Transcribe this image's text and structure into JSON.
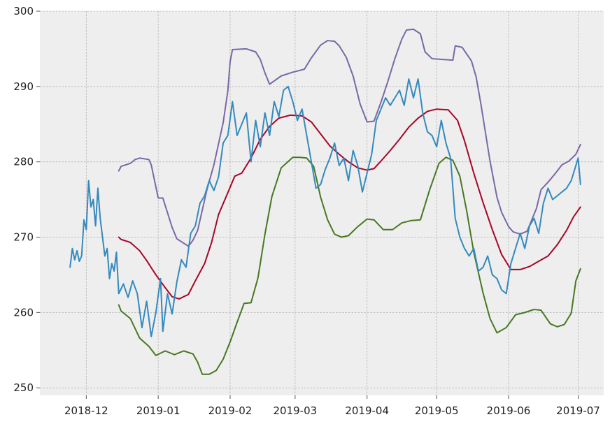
{
  "chart_data": {
    "type": "line",
    "title": "",
    "xlabel": "",
    "ylabel": "",
    "grid": true,
    "xlim": [
      "2018-11-11",
      "2019-07-12"
    ],
    "ylim": [
      249,
      300
    ],
    "x_ticks": [
      {
        "date": "2018-12-01",
        "label": "2018-12"
      },
      {
        "date": "2019-01-01",
        "label": "2019-01"
      },
      {
        "date": "2019-02-01",
        "label": "2019-02"
      },
      {
        "date": "2019-03-01",
        "label": "2019-03"
      },
      {
        "date": "2019-04-01",
        "label": "2019-04"
      },
      {
        "date": "2019-05-01",
        "label": "2019-05"
      },
      {
        "date": "2019-06-01",
        "label": "2019-06"
      },
      {
        "date": "2019-07-01",
        "label": "2019-07"
      }
    ],
    "y_ticks": [
      250,
      260,
      270,
      280,
      290,
      300
    ],
    "series": [
      {
        "color": "#7a68a6",
        "x": [
          "2018-12-15",
          "2018-12-16",
          "2018-12-20",
          "2018-12-22",
          "2018-12-24",
          "2018-12-28",
          "2018-12-29",
          "2019-01-01",
          "2019-01-03",
          "2019-01-07",
          "2019-01-09",
          "2019-01-12",
          "2019-01-14",
          "2019-01-16",
          "2019-01-18",
          "2019-01-22",
          "2019-01-25",
          "2019-01-27",
          "2019-01-29",
          "2019-01-31",
          "2019-02-01",
          "2019-02-02",
          "2019-02-08",
          "2019-02-12",
          "2019-02-14",
          "2019-02-16",
          "2019-02-18",
          "2019-02-23",
          "2019-02-28",
          "2019-03-05",
          "2019-03-08",
          "2019-03-12",
          "2019-03-15",
          "2019-03-18",
          "2019-03-20",
          "2019-03-23",
          "2019-03-26",
          "2019-03-29",
          "2019-04-01",
          "2019-04-04",
          "2019-04-07",
          "2019-04-10",
          "2019-04-13",
          "2019-04-16",
          "2019-04-18",
          "2019-04-21",
          "2019-04-24",
          "2019-04-26",
          "2019-04-29",
          "2019-05-03",
          "2019-05-08",
          "2019-05-09",
          "2019-05-12",
          "2019-05-16",
          "2019-05-18",
          "2019-05-20",
          "2019-05-24",
          "2019-05-27",
          "2019-05-29",
          "2019-06-01",
          "2019-06-03",
          "2019-06-06",
          "2019-06-09",
          "2019-06-13",
          "2019-06-15",
          "2019-06-18",
          "2019-06-21",
          "2019-06-24",
          "2019-06-27",
          "2019-06-30",
          "2019-07-02"
        ],
        "y": [
          278.8,
          279.4,
          279.8,
          280.3,
          280.5,
          280.3,
          279.6,
          275.2,
          275.2,
          271.3,
          269.8,
          269.2,
          268.8,
          269.6,
          270.9,
          276.3,
          279.6,
          282.4,
          285.2,
          289.4,
          293.3,
          294.9,
          295.0,
          294.6,
          293.6,
          291.8,
          290.3,
          291.4,
          291.9,
          292.3,
          293.8,
          295.5,
          296.1,
          296.0,
          295.4,
          293.9,
          291.4,
          287.7,
          285.3,
          285.4,
          287.9,
          290.7,
          293.7,
          296.3,
          297.5,
          297.6,
          297.0,
          294.6,
          293.7,
          293.6,
          293.5,
          295.4,
          295.2,
          293.4,
          291.3,
          287.8,
          280.1,
          275.3,
          273.3,
          271.4,
          270.7,
          270.4,
          270.8,
          273.8,
          276.3,
          277.3,
          278.4,
          279.6,
          280.1,
          281.0,
          282.3
        ]
      },
      {
        "color": "#a60628",
        "x": [
          "2018-12-15",
          "2018-12-16",
          "2018-12-20",
          "2018-12-24",
          "2018-12-27",
          "2018-12-31",
          "2019-01-04",
          "2019-01-07",
          "2019-01-10",
          "2019-01-14",
          "2019-01-17",
          "2019-01-21",
          "2019-01-24",
          "2019-01-27",
          "2019-01-31",
          "2019-02-03",
          "2019-02-06",
          "2019-02-10",
          "2019-02-14",
          "2019-02-18",
          "2019-02-22",
          "2019-02-27",
          "2019-03-04",
          "2019-03-08",
          "2019-03-12",
          "2019-03-16",
          "2019-03-20",
          "2019-03-24",
          "2019-03-28",
          "2019-04-01",
          "2019-04-04",
          "2019-04-07",
          "2019-04-11",
          "2019-04-15",
          "2019-04-19",
          "2019-04-23",
          "2019-04-27",
          "2019-05-01",
          "2019-05-06",
          "2019-05-10",
          "2019-05-13",
          "2019-05-17",
          "2019-05-21",
          "2019-05-25",
          "2019-05-29",
          "2019-06-02",
          "2019-06-06",
          "2019-06-10",
          "2019-06-14",
          "2019-06-18",
          "2019-06-22",
          "2019-06-26",
          "2019-06-29",
          "2019-07-02"
        ],
        "y": [
          270.0,
          269.7,
          269.3,
          268.2,
          266.9,
          265.0,
          263.3,
          262.1,
          261.8,
          262.4,
          264.2,
          266.5,
          269.3,
          273.0,
          275.9,
          278.1,
          278.5,
          280.5,
          283.0,
          284.7,
          285.8,
          286.2,
          286.1,
          285.3,
          283.7,
          282.1,
          281.0,
          280.0,
          279.2,
          278.9,
          279.1,
          280.1,
          281.5,
          283.0,
          284.6,
          285.8,
          286.7,
          287.0,
          286.9,
          285.5,
          282.8,
          278.5,
          274.6,
          271.0,
          267.7,
          265.7,
          265.7,
          266.1,
          266.8,
          267.5,
          269.0,
          270.9,
          272.7,
          274.0
        ]
      },
      {
        "color": "#467821",
        "x": [
          "2018-12-15",
          "2018-12-16",
          "2018-12-20",
          "2018-12-24",
          "2018-12-28",
          "2018-12-31",
          "2019-01-04",
          "2019-01-08",
          "2019-01-12",
          "2019-01-16",
          "2019-01-18",
          "2019-01-20",
          "2019-01-23",
          "2019-01-26",
          "2019-01-29",
          "2019-02-01",
          "2019-02-04",
          "2019-02-07",
          "2019-02-10",
          "2019-02-13",
          "2019-02-16",
          "2019-02-19",
          "2019-02-23",
          "2019-02-28",
          "2019-03-03",
          "2019-03-06",
          "2019-03-09",
          "2019-03-12",
          "2019-03-15",
          "2019-03-18",
          "2019-03-21",
          "2019-03-24",
          "2019-03-28",
          "2019-04-01",
          "2019-04-04",
          "2019-04-08",
          "2019-04-12",
          "2019-04-16",
          "2019-04-20",
          "2019-04-24",
          "2019-04-28",
          "2019-05-02",
          "2019-05-05",
          "2019-05-08",
          "2019-05-11",
          "2019-05-14",
          "2019-05-17",
          "2019-05-21",
          "2019-05-24",
          "2019-05-27",
          "2019-05-31",
          "2019-06-04",
          "2019-06-08",
          "2019-06-12",
          "2019-06-15",
          "2019-06-19",
          "2019-06-22",
          "2019-06-25",
          "2019-06-28",
          "2019-06-30",
          "2019-07-02"
        ],
        "y": [
          261.0,
          260.2,
          259.2,
          256.6,
          255.5,
          254.3,
          254.9,
          254.4,
          254.9,
          254.5,
          253.4,
          251.8,
          251.8,
          252.3,
          253.8,
          256.1,
          258.7,
          261.2,
          261.3,
          264.6,
          270.4,
          275.4,
          279.2,
          280.6,
          280.6,
          280.5,
          279.4,
          275.3,
          272.3,
          270.4,
          270.0,
          270.2,
          271.4,
          272.4,
          272.3,
          271.0,
          271.0,
          271.9,
          272.2,
          272.3,
          276.3,
          279.8,
          280.6,
          280.2,
          278.1,
          273.4,
          268.0,
          262.6,
          259.2,
          257.3,
          258.0,
          259.7,
          260.0,
          260.4,
          260.3,
          258.5,
          258.1,
          258.4,
          259.9,
          264.2,
          265.8
        ]
      },
      {
        "color": "#348abd",
        "x": [
          "2018-11-24",
          "2018-11-25",
          "2018-11-26",
          "2018-11-27",
          "2018-11-28",
          "2018-11-29",
          "2018-11-30",
          "2018-12-01",
          "2018-12-02",
          "2018-12-03",
          "2018-12-04",
          "2018-12-05",
          "2018-12-06",
          "2018-12-07",
          "2018-12-08",
          "2018-12-09",
          "2018-12-10",
          "2018-12-11",
          "2018-12-12",
          "2018-12-13",
          "2018-12-14",
          "2018-12-15",
          "2018-12-17",
          "2018-12-19",
          "2018-12-21",
          "2018-12-23",
          "2018-12-25",
          "2018-12-27",
          "2018-12-29",
          "2018-12-31",
          "2019-01-02",
          "2019-01-03",
          "2019-01-05",
          "2019-01-07",
          "2019-01-09",
          "2019-01-11",
          "2019-01-13",
          "2019-01-15",
          "2019-01-17",
          "2019-01-19",
          "2019-01-21",
          "2019-01-23",
          "2019-01-25",
          "2019-01-27",
          "2019-01-29",
          "2019-01-31",
          "2019-02-02",
          "2019-02-04",
          "2019-02-06",
          "2019-02-08",
          "2019-02-10",
          "2019-02-12",
          "2019-02-14",
          "2019-02-16",
          "2019-02-18",
          "2019-02-20",
          "2019-02-22",
          "2019-02-24",
          "2019-02-26",
          "2019-02-28",
          "2019-03-02",
          "2019-03-04",
          "2019-03-06",
          "2019-03-08",
          "2019-03-10",
          "2019-03-12",
          "2019-03-14",
          "2019-03-16",
          "2019-03-18",
          "2019-03-20",
          "2019-03-22",
          "2019-03-24",
          "2019-03-26",
          "2019-03-28",
          "2019-03-30",
          "2019-04-01",
          "2019-04-03",
          "2019-04-05",
          "2019-04-07",
          "2019-04-09",
          "2019-04-11",
          "2019-04-13",
          "2019-04-15",
          "2019-04-17",
          "2019-04-19",
          "2019-04-21",
          "2019-04-23",
          "2019-04-25",
          "2019-04-27",
          "2019-04-29",
          "2019-05-01",
          "2019-05-03",
          "2019-05-05",
          "2019-05-07",
          "2019-05-09",
          "2019-05-11",
          "2019-05-13",
          "2019-05-15",
          "2019-05-17",
          "2019-05-19",
          "2019-05-21",
          "2019-05-23",
          "2019-05-25",
          "2019-05-27",
          "2019-05-29",
          "2019-05-31",
          "2019-06-02",
          "2019-06-04",
          "2019-06-06",
          "2019-06-08",
          "2019-06-10",
          "2019-06-12",
          "2019-06-14",
          "2019-06-16",
          "2019-06-18",
          "2019-06-20",
          "2019-06-22",
          "2019-06-24",
          "2019-06-26",
          "2019-06-28",
          "2019-06-30",
          "2019-07-01",
          "2019-07-02"
        ],
        "y": [
          266.0,
          268.5,
          267.0,
          268.2,
          266.8,
          267.5,
          272.3,
          271.0,
          277.5,
          274.0,
          275.0,
          271.5,
          276.5,
          272.5,
          270.0,
          267.5,
          268.5,
          264.5,
          266.5,
          265.5,
          268.0,
          262.5,
          263.8,
          262.0,
          264.2,
          262.5,
          258.0,
          261.5,
          256.8,
          260.0,
          264.5,
          257.5,
          262.5,
          259.8,
          264.0,
          267.0,
          266.0,
          270.5,
          271.5,
          274.5,
          275.5,
          277.5,
          276.2,
          278.0,
          282.5,
          283.5,
          288.0,
          283.5,
          285.0,
          286.5,
          280.0,
          285.5,
          282.0,
          286.5,
          283.5,
          288.0,
          286.0,
          289.5,
          290.0,
          288.0,
          285.5,
          287.0,
          283.5,
          280.0,
          276.5,
          277.0,
          279.0,
          280.5,
          282.5,
          279.5,
          280.5,
          277.5,
          281.5,
          279.5,
          276.0,
          278.5,
          281.0,
          285.5,
          287.0,
          288.5,
          287.5,
          288.5,
          289.5,
          287.5,
          291.0,
          288.5,
          291.0,
          286.5,
          284.0,
          283.5,
          282.0,
          285.5,
          282.5,
          280.5,
          272.5,
          270.0,
          268.5,
          267.5,
          268.5,
          265.5,
          266.0,
          267.5,
          265.0,
          264.5,
          263.0,
          262.5,
          266.5,
          268.5,
          270.5,
          268.5,
          271.5,
          272.5,
          270.5,
          274.5,
          276.5,
          275.0,
          275.5,
          276.0,
          276.5,
          277.5,
          279.5,
          280.5,
          277.0
        ]
      }
    ]
  }
}
